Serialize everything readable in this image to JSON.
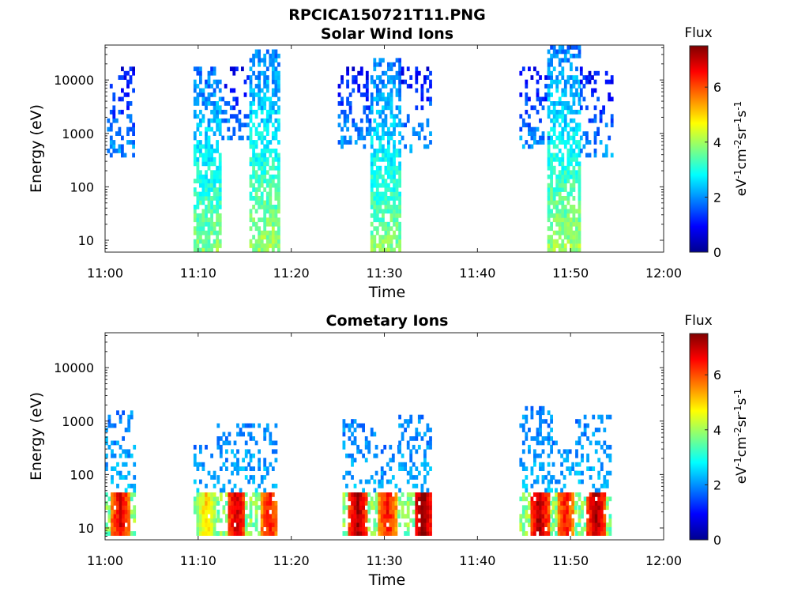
{
  "figure": {
    "title_line1": "RPCICA150721T11.PNG"
  },
  "chart_data": [
    {
      "type": "heatmap",
      "title": "Solar Wind Ions",
      "xlabel": "Time",
      "ylabel": "Energy (eV)",
      "x_ticks": [
        "11:00",
        "11:10",
        "11:20",
        "11:30",
        "11:40",
        "11:50",
        "12:00"
      ],
      "xlim": [
        0,
        60
      ],
      "y_scale": "log",
      "ylim": [
        6,
        45000
      ],
      "y_ticks": [
        "10",
        "100",
        "1000",
        "10000"
      ],
      "colorbar": {
        "label": "Flux",
        "unit": "eV⁻¹cm⁻²sr⁻¹s⁻¹",
        "ticks": [
          "0",
          "2",
          "4",
          "6"
        ],
        "range": [
          0,
          7.5
        ],
        "colormap": "jet"
      },
      "bursts": [
        {
          "t_start": 0.2,
          "t_end": 3.0,
          "e_low": 400,
          "e_high": 15000,
          "peak_flux": 2.0,
          "density": 0.35
        },
        {
          "t_start": 9.5,
          "t_end": 12.5,
          "e_low": 6,
          "e_high": 15000,
          "peak_flux": 3.8,
          "density": 0.75
        },
        {
          "t_start": 12.5,
          "t_end": 15.5,
          "e_low": 800,
          "e_high": 15000,
          "peak_flux": 2.0,
          "density": 0.3
        },
        {
          "t_start": 15.5,
          "t_end": 18.8,
          "e_low": 6,
          "e_high": 35000,
          "peak_flux": 4.0,
          "density": 0.75
        },
        {
          "t_start": 25.0,
          "t_end": 28.5,
          "e_low": 600,
          "e_high": 15000,
          "peak_flux": 2.0,
          "density": 0.35
        },
        {
          "t_start": 28.5,
          "t_end": 31.8,
          "e_low": 6,
          "e_high": 22000,
          "peak_flux": 3.8,
          "density": 0.75
        },
        {
          "t_start": 31.8,
          "t_end": 34.8,
          "e_low": 500,
          "e_high": 15000,
          "peak_flux": 2.0,
          "density": 0.35
        },
        {
          "t_start": 44.5,
          "t_end": 47.5,
          "e_low": 600,
          "e_high": 15000,
          "peak_flux": 2.0,
          "density": 0.35
        },
        {
          "t_start": 47.5,
          "t_end": 51.0,
          "e_low": 6,
          "e_high": 40000,
          "peak_flux": 4.0,
          "density": 0.75
        },
        {
          "t_start": 51.0,
          "t_end": 54.3,
          "e_low": 400,
          "e_high": 17000,
          "peak_flux": 2.0,
          "density": 0.35
        }
      ]
    },
    {
      "type": "heatmap",
      "title": "Cometary Ions",
      "xlabel": "Time",
      "ylabel": "Energy (eV)",
      "x_ticks": [
        "11:00",
        "11:10",
        "11:20",
        "11:30",
        "11:40",
        "11:50",
        "12:00"
      ],
      "xlim": [
        0,
        60
      ],
      "y_scale": "log",
      "ylim": [
        6,
        45000
      ],
      "y_ticks": [
        "10",
        "100",
        "1000",
        "10000"
      ],
      "colorbar": {
        "label": "Flux",
        "unit": "eV⁻¹cm⁻²sr⁻¹s⁻¹",
        "ticks": [
          "0",
          "2",
          "4",
          "6"
        ],
        "range": [
          0,
          7.5
        ],
        "colormap": "jet"
      },
      "bursts": [
        {
          "t_start": 0.0,
          "t_end": 3.0,
          "e_low": 8,
          "e_high": 1500,
          "peak_flux": 6.8,
          "core_t": 1.5,
          "density": 0.5
        },
        {
          "t_start": 9.5,
          "t_end": 12.0,
          "e_low": 8,
          "e_high": 300,
          "peak_flux": 5.0,
          "core_t": 10.7,
          "density": 0.45
        },
        {
          "t_start": 12.0,
          "t_end": 15.5,
          "e_low": 8,
          "e_high": 900,
          "peak_flux": 7.0,
          "core_t": 14.0,
          "density": 0.45
        },
        {
          "t_start": 15.5,
          "t_end": 18.5,
          "e_low": 8,
          "e_high": 900,
          "peak_flux": 6.5,
          "core_t": 17.5,
          "density": 0.45
        },
        {
          "t_start": 25.5,
          "t_end": 29.0,
          "e_low": 8,
          "e_high": 1000,
          "peak_flux": 7.2,
          "core_t": 27.0,
          "density": 0.5
        },
        {
          "t_start": 29.0,
          "t_end": 31.5,
          "e_low": 8,
          "e_high": 300,
          "peak_flux": 6.5,
          "core_t": 30.2,
          "density": 0.45
        },
        {
          "t_start": 31.5,
          "t_end": 35.0,
          "e_low": 8,
          "e_high": 1200,
          "peak_flux": 7.5,
          "core_t": 34.0,
          "density": 0.5
        },
        {
          "t_start": 44.5,
          "t_end": 48.0,
          "e_low": 8,
          "e_high": 1800,
          "peak_flux": 7.2,
          "core_t": 46.5,
          "density": 0.5
        },
        {
          "t_start": 48.0,
          "t_end": 50.5,
          "e_low": 8,
          "e_high": 400,
          "peak_flux": 6.5,
          "core_t": 49.3,
          "density": 0.45
        },
        {
          "t_start": 50.5,
          "t_end": 54.3,
          "e_low": 8,
          "e_high": 1100,
          "peak_flux": 7.2,
          "core_t": 52.6,
          "density": 0.5
        }
      ]
    }
  ]
}
